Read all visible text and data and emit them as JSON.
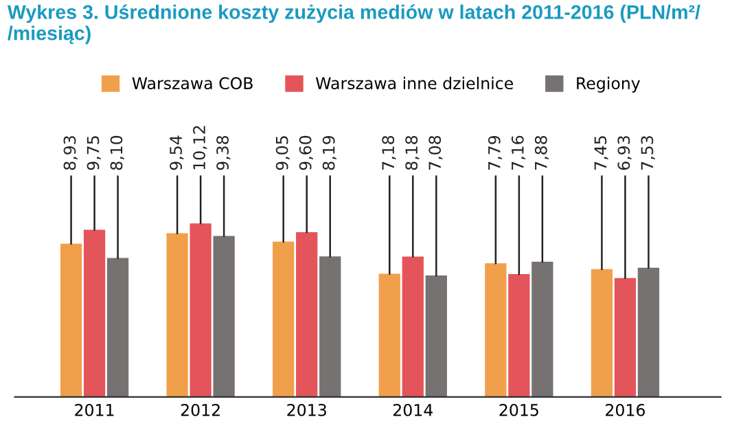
{
  "chart_data": {
    "type": "bar",
    "title": "Wykres 3. Uśrednione koszty zużycia mediów w latach 2011-2016 (PLN/m²/\n/miesiąc)",
    "categories": [
      "2011",
      "2012",
      "2013",
      "2014",
      "2015",
      "2016"
    ],
    "series": [
      {
        "name": "Warszawa COB",
        "color": "#f0a04b",
        "values": [
          8.93,
          9.54,
          9.05,
          7.18,
          7.79,
          7.45
        ],
        "value_labels": [
          "8,93",
          "9,54",
          "9,05",
          "7,18",
          "7,79",
          "7,45"
        ]
      },
      {
        "name": "Warszawa inne dzielnice",
        "color": "#e4555b",
        "values": [
          9.75,
          10.12,
          9.6,
          8.18,
          7.16,
          6.93
        ],
        "value_labels": [
          "9,75",
          "10,12",
          "9,60",
          "8,18",
          "7,16",
          "6,93"
        ]
      },
      {
        "name": "Regiony",
        "color": "#767272",
        "values": [
          8.1,
          9.38,
          8.19,
          7.08,
          7.88,
          7.53
        ],
        "value_labels": [
          "8,10",
          "9,38",
          "8,19",
          "7,08",
          "7,88",
          "7,53"
        ]
      }
    ],
    "legend": "top",
    "grid": false
  }
}
